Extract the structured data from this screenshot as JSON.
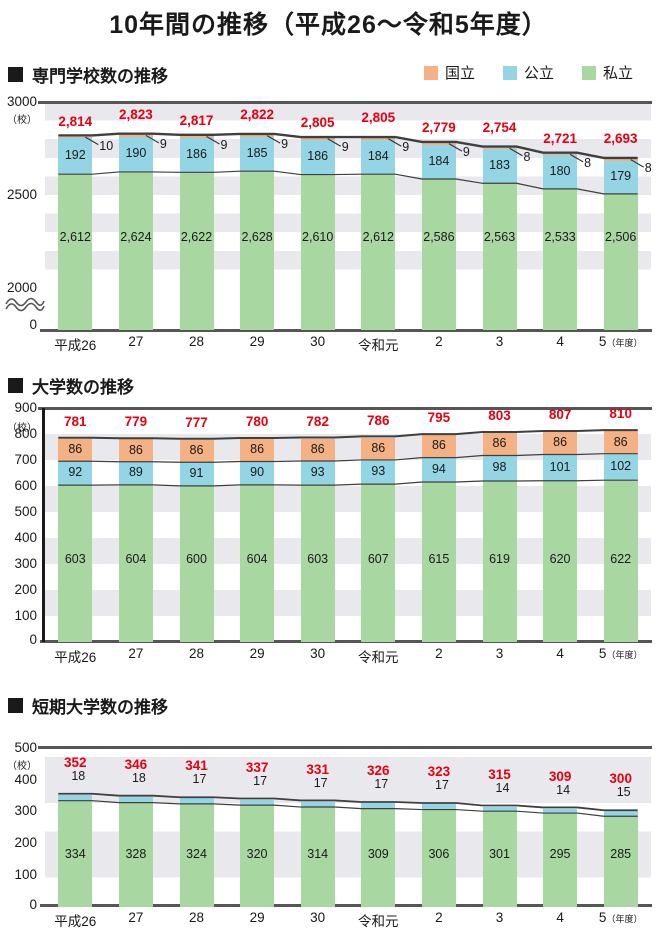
{
  "page": {
    "title": "10年間の推移（平成26〜令和5年度）"
  },
  "legend": {
    "items": [
      {
        "label": "国立",
        "key": "national",
        "color": "#f4b183"
      },
      {
        "label": "公立",
        "key": "public",
        "color": "#93d5e5"
      },
      {
        "label": "私立",
        "key": "private",
        "color": "#a9d7a2"
      }
    ]
  },
  "colors": {
    "total_label": "#e60012",
    "axis": "#565656",
    "series_line": "#3f3f3f",
    "stripe": "#e9e8ed",
    "text": "#1a1a1a"
  },
  "chart_data": [
    {
      "id": "c1",
      "type": "bar",
      "stacked": true,
      "title": "専門学校数の推移",
      "unit_label": "（校）",
      "categories": [
        "平成26",
        "27",
        "28",
        "29",
        "30",
        "令和元",
        "2",
        "3",
        "4",
        "5"
      ],
      "x_axis_suffix": "（年度）",
      "y_ticks": [
        3000,
        2500,
        2000,
        0
      ],
      "axis_break": true,
      "ylim": [
        0,
        3000
      ],
      "grid": "striped",
      "legend_position": "top-right",
      "series": [
        {
          "name": "国立",
          "key": "national",
          "values": [
            10,
            9,
            9,
            9,
            9,
            9,
            9,
            8,
            8,
            8
          ]
        },
        {
          "name": "公立",
          "key": "public",
          "values": [
            192,
            190,
            186,
            185,
            186,
            184,
            184,
            183,
            180,
            179
          ]
        },
        {
          "name": "私立",
          "key": "private",
          "values": [
            2612,
            2624,
            2622,
            2628,
            2610,
            2612,
            2586,
            2563,
            2533,
            2506
          ],
          "display": [
            "2,612",
            "2,624",
            "2,622",
            "2,628",
            "2,610",
            "2,612",
            "2,586",
            "2,563",
            "2,533",
            "2,506"
          ]
        }
      ],
      "totals": [
        2814,
        2823,
        2817,
        2822,
        2805,
        2805,
        2779,
        2754,
        2721,
        2693
      ],
      "totals_display": [
        "2,814",
        "2,823",
        "2,817",
        "2,822",
        "2,805",
        "2,805",
        "2,779",
        "2,754",
        "2,721",
        "2,693"
      ]
    },
    {
      "id": "c2",
      "type": "bar",
      "stacked": true,
      "title": "大学数の推移",
      "unit_label": "（校）",
      "categories": [
        "平成26",
        "27",
        "28",
        "29",
        "30",
        "令和元",
        "2",
        "3",
        "4",
        "5"
      ],
      "x_axis_suffix": "（年度）",
      "y_ticks": [
        900,
        800,
        700,
        600,
        500,
        400,
        300,
        200,
        100,
        0
      ],
      "axis_break": false,
      "ylim": [
        0,
        900
      ],
      "grid": "striped",
      "series": [
        {
          "name": "国立",
          "key": "national",
          "values": [
            86,
            86,
            86,
            86,
            86,
            86,
            86,
            86,
            86,
            86
          ]
        },
        {
          "name": "公立",
          "key": "public",
          "values": [
            92,
            89,
            91,
            90,
            93,
            93,
            94,
            98,
            101,
            102
          ]
        },
        {
          "name": "私立",
          "key": "private",
          "values": [
            603,
            604,
            600,
            604,
            603,
            607,
            615,
            619,
            620,
            622
          ]
        }
      ],
      "totals": [
        781,
        779,
        777,
        780,
        782,
        786,
        795,
        803,
        807,
        810
      ],
      "totals_display": [
        "781",
        "779",
        "777",
        "780",
        "782",
        "786",
        "795",
        "803",
        "807",
        "810"
      ]
    },
    {
      "id": "c3",
      "type": "bar",
      "stacked": true,
      "title": "短期大学数の推移",
      "unit_label": "（校）",
      "categories": [
        "平成26",
        "27",
        "28",
        "29",
        "30",
        "令和元",
        "2",
        "3",
        "4",
        "5"
      ],
      "x_axis_suffix": "（年度）",
      "y_ticks": [
        500,
        400,
        300,
        200,
        100,
        0
      ],
      "axis_break": false,
      "ylim": [
        0,
        500
      ],
      "grid": "striped",
      "series": [
        {
          "name": "公立",
          "key": "public",
          "values": [
            18,
            18,
            17,
            17,
            17,
            17,
            17,
            14,
            14,
            15
          ]
        },
        {
          "name": "私立",
          "key": "private",
          "values": [
            334,
            328,
            324,
            320,
            314,
            309,
            306,
            301,
            295,
            285
          ]
        }
      ],
      "totals": [
        352,
        346,
        341,
        337,
        331,
        326,
        323,
        315,
        309,
        300
      ],
      "totals_display": [
        "352",
        "346",
        "341",
        "337",
        "331",
        "326",
        "323",
        "315",
        "309",
        "300"
      ]
    }
  ]
}
